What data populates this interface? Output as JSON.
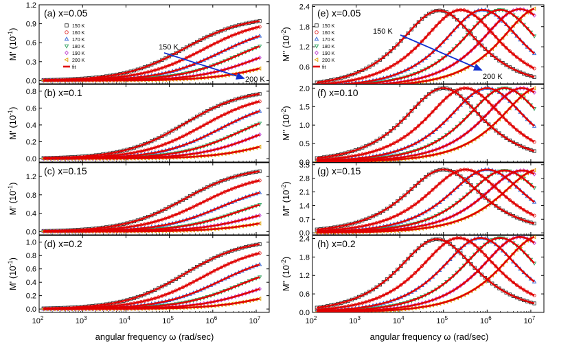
{
  "chart_data": {
    "type": "scatter",
    "xlabel": "angular frequency ω (rad/sec)",
    "x_range": [
      100,
      20000000
    ],
    "x_scale": "log",
    "x_ticks": [
      "10",
      "10",
      "10",
      "10",
      "10",
      "10"
    ],
    "x_tick_exponents": [
      "2",
      "3",
      "4",
      "5",
      "6",
      "7"
    ],
    "legend": [
      "150 K",
      "160 K",
      "170 K",
      "180 K",
      "190 K",
      "200 K",
      "fit"
    ],
    "series_colors": [
      "#333333",
      "#e0302f",
      "#2f62d6",
      "#2a9e5a",
      "#c040d0",
      "#e0a000"
    ],
    "temperatures": [
      150,
      160,
      170,
      180,
      190,
      200
    ],
    "fit_color": "#e00000",
    "arrow_color": "#1030d0",
    "panels": [
      {
        "id": "a",
        "title": "(a) x=0.05",
        "quantity": "M'",
        "ylabel": "M' (10",
        "ylabel_exp": "-1",
        "ylabel_end": ")",
        "yrange": [
          -0.05,
          1.2
        ],
        "ticks": [
          "0.0",
          "0.3",
          "0.6",
          "0.9",
          "1.2"
        ],
        "tick_values": [
          0,
          0.3,
          0.6,
          0.9,
          1.2
        ],
        "max_values": [
          1.02,
          0.98,
          0.9,
          0.82,
          0.7,
          0.52
        ],
        "log_center_offset": 5.35,
        "arrow": {
          "from_label": "150 K",
          "to_label": "200 K"
        }
      },
      {
        "id": "b",
        "title": "(b) x=0.1",
        "quantity": "M'",
        "ylabel": "M' (10",
        "ylabel_exp": "-1",
        "ylabel_end": ")",
        "yrange": [
          -0.04,
          0.88
        ],
        "ticks": [
          "0.0",
          "0.2",
          "0.4",
          "0.6",
          "0.8"
        ],
        "tick_values": [
          0,
          0.2,
          0.4,
          0.6,
          0.8
        ],
        "max_values": [
          0.83,
          0.78,
          0.72,
          0.63,
          0.55,
          0.38
        ],
        "log_center_offset": 5.35
      },
      {
        "id": "c",
        "title": "(c) x=0.15",
        "quantity": "M'",
        "ylabel": "M' (10",
        "ylabel_exp": "-1",
        "ylabel_end": ")",
        "yrange": [
          -0.07,
          1.5
        ],
        "ticks": [
          "0.0",
          "0.4",
          "0.8",
          "1.2"
        ],
        "tick_values": [
          0,
          0.4,
          0.8,
          1.2
        ],
        "max_values": [
          1.42,
          1.28,
          1.08,
          0.88,
          0.68,
          0.48
        ],
        "log_center_offset": 5.35
      },
      {
        "id": "d",
        "title": "(d) x=0.2",
        "quantity": "M'",
        "ylabel": "M' (10",
        "ylabel_exp": "-1",
        "ylabel_end": ")",
        "yrange": [
          -0.05,
          1.1
        ],
        "ticks": [
          "0.0",
          "0.2",
          "0.4",
          "0.6",
          "0.8",
          "1.0"
        ],
        "tick_values": [
          0,
          0.2,
          0.4,
          0.6,
          0.8,
          1.0
        ],
        "max_values": [
          1.05,
          0.96,
          0.85,
          0.72,
          0.58,
          0.42
        ],
        "log_center_offset": 5.35
      },
      {
        "id": "e",
        "title": "(e) x=0.05",
        "quantity": "M\"",
        "ylabel": "M'' (10",
        "ylabel_exp": "-2",
        "ylabel_end": ")",
        "yrange": [
          0.1,
          2.45
        ],
        "ticks": [
          "0.0",
          "0.6",
          "1.2",
          "1.8",
          "2.4"
        ],
        "tick_values": [
          0,
          0.6,
          1.2,
          1.8,
          2.4
        ],
        "peak_values": [
          2.28,
          2.3,
          2.3,
          2.3,
          2.32,
          2.36
        ],
        "peak_log_freq": [
          4.9,
          5.4,
          5.9,
          6.3,
          6.75,
          7.2
        ],
        "arrow": {
          "from_label": "150 K",
          "to_label": "200 K"
        }
      },
      {
        "id": "f",
        "title": "(f) x=0.10",
        "quantity": "M\"",
        "ylabel": "M'' (10",
        "ylabel_exp": "-2",
        "ylabel_end": ")",
        "yrange": [
          0.0,
          2.1
        ],
        "ticks": [
          "0.0",
          "0.5",
          "1.0",
          "1.5",
          "2.0"
        ],
        "tick_values": [
          0,
          0.5,
          1.0,
          1.5,
          2.0
        ],
        "peak_values": [
          2.0,
          2.0,
          2.0,
          2.0,
          2.0,
          2.02
        ],
        "peak_log_freq": [
          5.0,
          5.5,
          6.0,
          6.4,
          6.8,
          7.2
        ]
      },
      {
        "id": "g",
        "title": "(g) x=0.15",
        "quantity": "M\"",
        "ylabel": "M'' (10",
        "ylabel_exp": "-2",
        "ylabel_end": ")",
        "yrange": [
          -0.1,
          3.6
        ],
        "ticks": [
          "0.0",
          "0.7",
          "1.4",
          "2.1",
          "2.8",
          "3.5"
        ],
        "tick_values": [
          0,
          0.7,
          1.4,
          2.1,
          2.8,
          3.5
        ],
        "peak_values": [
          3.25,
          3.25,
          3.25,
          3.2,
          3.2,
          3.25
        ],
        "peak_log_freq": [
          5.0,
          5.5,
          6.0,
          6.4,
          6.8,
          7.2
        ]
      },
      {
        "id": "h",
        "title": "(h) x=0.2",
        "quantity": "M\"",
        "ylabel": "M'' (10",
        "ylabel_exp": "-2",
        "ylabel_end": ")",
        "yrange": [
          0.0,
          2.5
        ],
        "ticks": [
          "0.0",
          "0.6",
          "1.2",
          "1.8",
          "2.4"
        ],
        "tick_values": [
          0,
          0.6,
          1.2,
          1.8,
          2.4
        ],
        "peak_values": [
          2.38,
          2.42,
          2.42,
          2.42,
          2.45,
          2.48
        ],
        "peak_log_freq": [
          4.85,
          5.35,
          5.85,
          6.3,
          6.75,
          7.2
        ]
      }
    ]
  }
}
